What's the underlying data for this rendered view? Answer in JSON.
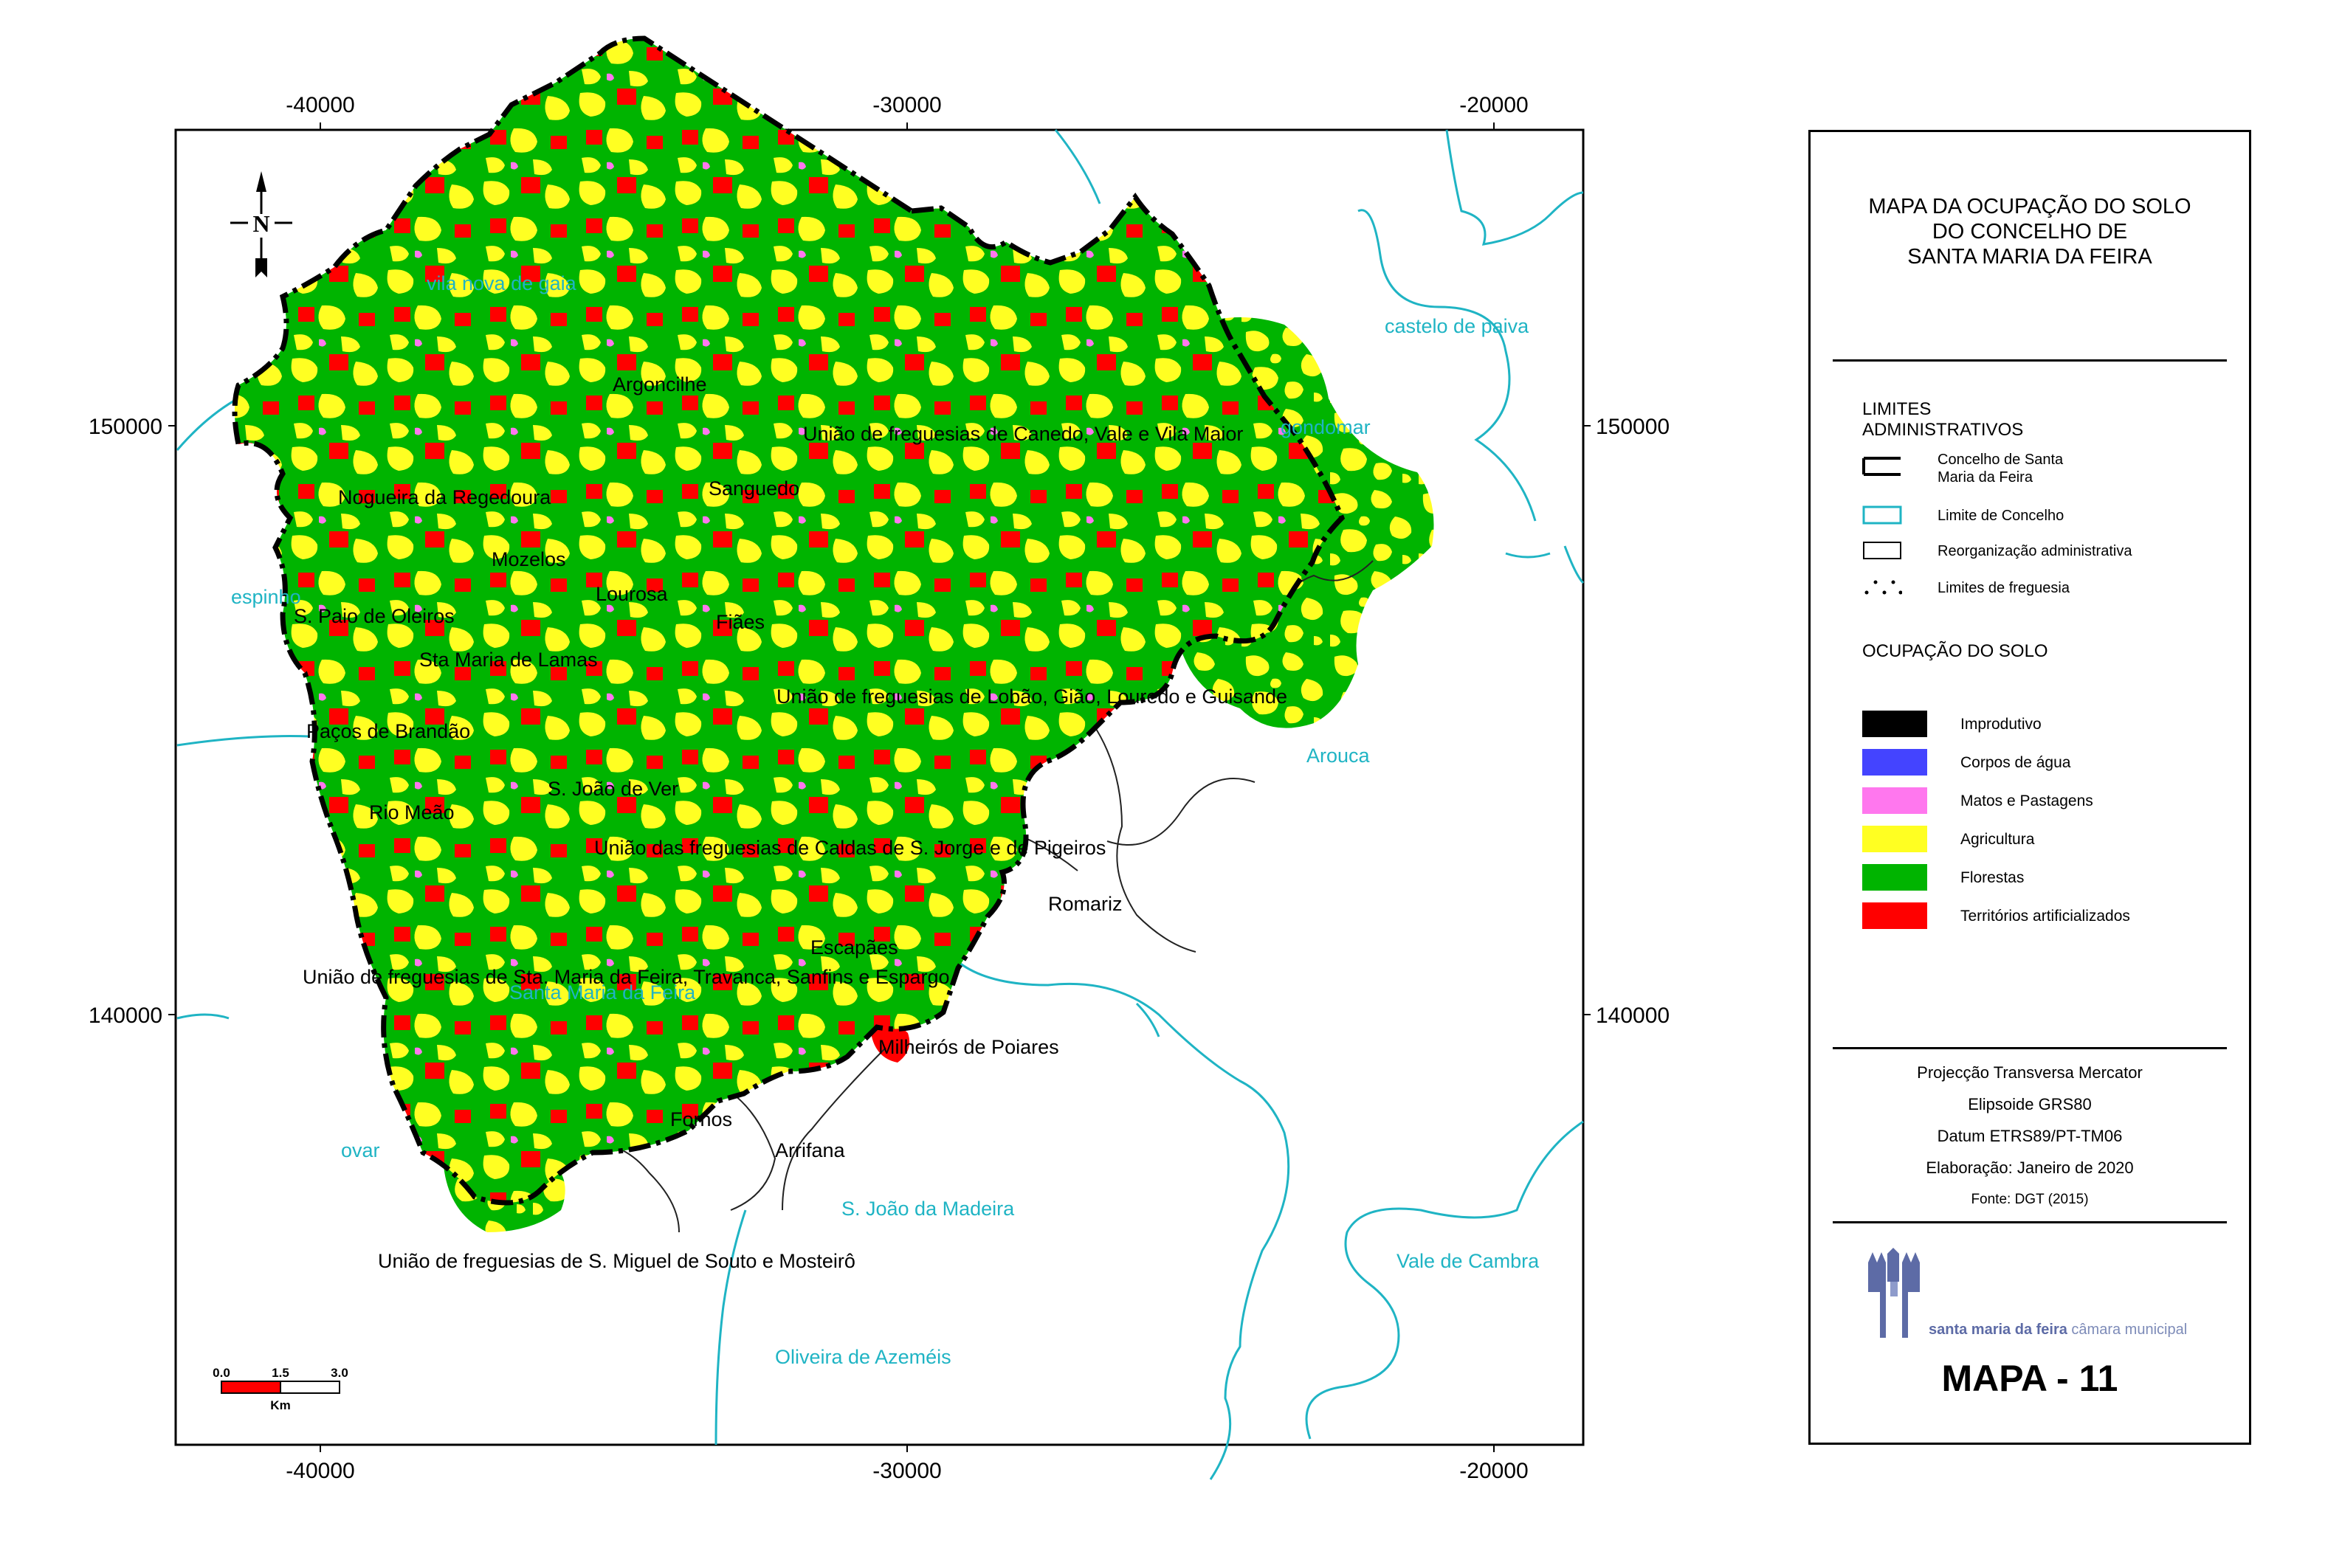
{
  "axes": {
    "x_ticks": [
      "-40000",
      "-30000",
      "-20000"
    ],
    "y_ticks": [
      "150000",
      "140000"
    ]
  },
  "north_arrow": {
    "label": "N"
  },
  "parishes": [
    "Argoncilhe",
    "União de freguesias de Canedo, Vale e Vila Maior",
    "Nogueira da Regedoura",
    "Sanguedo",
    "Mozelos",
    "Lourosa",
    "S. Paio de Oleiros",
    "Fiães",
    "Sta Maria de Lamas",
    "União de freguesias de Lobão, Gião, Louredo e Guisande",
    "Paços de Brandão",
    "S. João de Ver",
    "Rio Meão",
    "União das freguesias de Caldas de S. Jorge e de Pigeiros",
    "Romariz",
    "Escapães",
    "União de freguesias de Sta. Maria da Feira, Travanca, Sanfins e Espargo",
    "Milheirós de Poiares",
    "Fornos",
    "Arrifana",
    "União de freguesias de S. Miguel de Souto e Mosteirô"
  ],
  "municipalities": [
    "vila nova de gaia",
    "castelo de paiva",
    "gondomar",
    "espinho",
    "Arouca",
    "Santa Maria da Feira",
    "ovar",
    "S. João da Madeira",
    "Vale de Cambra",
    "Oliveira de Azeméis"
  ],
  "scale_bar": {
    "ticks": [
      "0.0",
      "1.5",
      "3.0"
    ],
    "unit": "Km"
  },
  "legend": {
    "title_lines": [
      "MAPA DA OCUPAÇÃO DO SOLO",
      "DO CONCELHO DE",
      "SANTA MARIA DA FEIRA"
    ],
    "admin_heading_lines": [
      "LIMITES",
      "ADMINISTRATIVOS"
    ],
    "admin_items": [
      [
        "Concelho de Santa",
        "Maria da Feira"
      ],
      [
        "Limite de Concelho"
      ],
      [
        "Reorganização administrativa"
      ],
      [
        "Limites de freguesia"
      ]
    ],
    "landuse_heading": "OCUPAÇÃO DO SOLO",
    "landuse_items": [
      {
        "label": "Improdutivo",
        "color": "#000000"
      },
      {
        "label": "Corpos de água",
        "color": "#4444ff"
      },
      {
        "label": "Matos e Pastagens",
        "color": "#ff77ee"
      },
      {
        "label": "Agricultura",
        "color": "#ffff22"
      },
      {
        "label": "Florestas",
        "color": "#00b400"
      },
      {
        "label": "Territórios artificializados",
        "color": "#ff0000"
      }
    ],
    "info_lines": [
      "Projecção Transversa Mercator",
      "Elipsoide GRS80",
      "Datum ETRS89/PT-TM06",
      "Elaboração: Janeiro de 2020",
      "Fonte: DGT (2015)"
    ],
    "logo_text_bold": "santa maria da feira",
    "logo_text_rest": " câmara municipal",
    "map_number": "MAPA - 11"
  },
  "colors": {
    "municipal_boundary": "#1fb4c4",
    "forest": "#00b400",
    "agriculture": "#ffff22",
    "artificial": "#ff0000",
    "scrub": "#ff77ee"
  }
}
